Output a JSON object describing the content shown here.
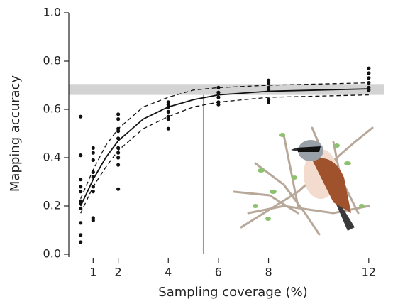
{
  "chart_data": {
    "type": "scatter",
    "x_label": "Sampling coverage (%)",
    "y_label": "Mapping accuracy",
    "xlim": [
      0,
      12.6
    ],
    "ylim": [
      0,
      1
    ],
    "xticks": [
      1,
      2,
      4,
      6,
      8,
      12
    ],
    "yticks": [
      {
        "value": 0,
        "label": "0.0"
      },
      0.2,
      0.4,
      0.6,
      0.8,
      {
        "value": 1,
        "label": "1.0"
      }
    ],
    "points": {
      "color": "#111111",
      "x": [
        0.5,
        0.5,
        0.5,
        0.5,
        0.5,
        0.5,
        0.5,
        0.5,
        0.5,
        0.5,
        0.5,
        1,
        1,
        1,
        1,
        1,
        1,
        1,
        1,
        1,
        2,
        2,
        2,
        2,
        2,
        2,
        2,
        2,
        2,
        2,
        4,
        4,
        4,
        4,
        4,
        4,
        4,
        6,
        6,
        6,
        6,
        6,
        8,
        8,
        8,
        8,
        8,
        8,
        12,
        12,
        12,
        12,
        12,
        12
      ],
      "y": [
        0.57,
        0.41,
        0.31,
        0.28,
        0.26,
        0.22,
        0.21,
        0.19,
        0.13,
        0.08,
        0.05,
        0.44,
        0.42,
        0.39,
        0.34,
        0.32,
        0.28,
        0.26,
        0.15,
        0.14,
        0.58,
        0.56,
        0.52,
        0.51,
        0.48,
        0.44,
        0.42,
        0.4,
        0.37,
        0.27,
        0.63,
        0.62,
        0.61,
        0.59,
        0.57,
        0.56,
        0.52,
        0.69,
        0.67,
        0.65,
        0.63,
        0.62,
        0.72,
        0.71,
        0.69,
        0.68,
        0.64,
        0.63,
        0.77,
        0.75,
        0.73,
        0.71,
        0.69,
        0.68
      ]
    },
    "fit": {
      "color": "#111111",
      "x": [
        0.5,
        1,
        1.5,
        2,
        3,
        4,
        5,
        6,
        8,
        10,
        12
      ],
      "values": [
        0.2,
        0.31,
        0.4,
        0.47,
        0.56,
        0.61,
        0.64,
        0.66,
        0.675,
        0.68,
        0.685
      ],
      "upper": [
        0.23,
        0.35,
        0.45,
        0.52,
        0.61,
        0.65,
        0.68,
        0.69,
        0.7,
        0.705,
        0.71
      ],
      "lower": [
        0.17,
        0.28,
        0.36,
        0.43,
        0.52,
        0.57,
        0.61,
        0.63,
        0.65,
        0.655,
        0.66
      ]
    },
    "band": {
      "range": [
        0.66,
        0.705
      ],
      "color": "#d3d3d3"
    },
    "vline": {
      "x": 5.4,
      "color": "#999999"
    }
  }
}
